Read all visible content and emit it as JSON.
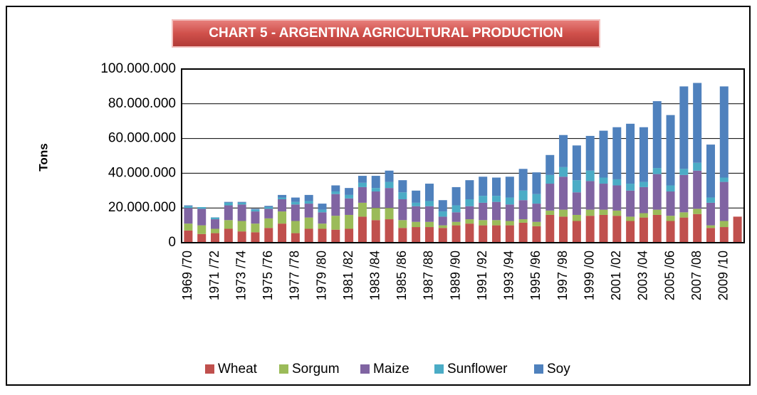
{
  "chart_data": {
    "type": "stacked_bar",
    "title": "CHART 5 - ARGENTINA AGRICULTURAL PRODUCTION",
    "y_label": "Tons",
    "categories": [
      "1969 /70",
      null,
      "1971 /72",
      null,
      "1973 /74",
      null,
      "1975 /76",
      null,
      "1977 /78",
      null,
      "1979 /80",
      null,
      "1981 /82",
      null,
      "1983 /84",
      null,
      "1985 /86",
      null,
      "1987 /88",
      null,
      "1989 /90",
      null,
      "1991 /92",
      null,
      "1993 /94",
      null,
      "1995 /96",
      null,
      "1997 /98",
      null,
      "1999 /00",
      null,
      "2001 /02",
      null,
      "2003 /04",
      null,
      "2005 /06",
      null,
      "2007 /08",
      null,
      "2009 /10",
      null
    ],
    "series": [
      {
        "name": "Wheat",
        "color": "#c0504d",
        "values": [
          7000000,
          5000000,
          5500000,
          8000000,
          6500000,
          6000000,
          8500000,
          11000000,
          5500000,
          8000000,
          8000000,
          7500000,
          8000000,
          15000000,
          13000000,
          13500000,
          8500000,
          9000000,
          9000000,
          8500000,
          10000000,
          11000000,
          10000000,
          10000000,
          10000000,
          11500000,
          9500000,
          16000000,
          15000000,
          12500000,
          15500000,
          16000000,
          15500000,
          12500000,
          14500000,
          16000000,
          12500000,
          14500000,
          16500000,
          8500000,
          9000000,
          15000000
        ]
      },
      {
        "name": "Sorgum",
        "color": "#9bbb59",
        "values": [
          4000000,
          5000000,
          2500000,
          5000000,
          6000000,
          5000000,
          5500000,
          7000000,
          7000000,
          6500000,
          3000000,
          8000000,
          8000000,
          8000000,
          7000000,
          6500000,
          4500000,
          3000000,
          3000000,
          1500000,
          2000000,
          2500000,
          3000000,
          3000000,
          2500000,
          2000000,
          2500000,
          2500000,
          4000000,
          3500000,
          3500000,
          3000000,
          3000000,
          2500000,
          2500000,
          3000000,
          3000000,
          3000000,
          3000000,
          1500000,
          3500000,
          null
        ]
      },
      {
        "name": "Maize",
        "color": "#8064a2",
        "values": [
          9000000,
          9500000,
          5500000,
          8500000,
          9500000,
          7000000,
          5500000,
          7000000,
          9500000,
          8000000,
          6500000,
          12500000,
          9500000,
          9000000,
          9500000,
          11500000,
          12000000,
          9000000,
          9000000,
          5000000,
          5500000,
          7500000,
          10000000,
          10500000,
          9500000,
          11000000,
          10500000,
          15500000,
          19000000,
          13000000,
          16500000,
          15000000,
          14500000,
          15000000,
          15000000,
          20500000,
          14000000,
          21500000,
          22000000,
          13000000,
          22500000,
          null
        ]
      },
      {
        "name": "Sunflower",
        "color": "#4bacc6",
        "values": [
          1000000,
          1000000,
          1000000,
          1500000,
          1000000,
          1000000,
          1000000,
          1000000,
          1500000,
          1500000,
          1500000,
          1500000,
          2000000,
          2500000,
          2000000,
          3500000,
          4000000,
          2000000,
          3000000,
          3000000,
          4000000,
          4000000,
          4000000,
          3500000,
          4000000,
          5500000,
          5500000,
          5000000,
          5500000,
          7000000,
          6000000,
          3500000,
          3500000,
          4000000,
          3000000,
          3500000,
          3500000,
          3500000,
          4500000,
          3000000,
          2500000,
          null
        ]
      },
      {
        "name": "Soy",
        "color": "#4f81bd",
        "values": [
          500000,
          null,
          100000,
          500000,
          500000,
          500000,
          700000,
          1500000,
          2500000,
          3500000,
          3500000,
          3500000,
          4000000,
          4000000,
          7000000,
          6500000,
          7000000,
          7000000,
          10000000,
          6500000,
          10500000,
          11000000,
          11000000,
          10500000,
          12000000,
          12500000,
          12500000,
          11500000,
          18500000,
          20000000,
          20000000,
          27000000,
          30000000,
          34500000,
          31500000,
          38500000,
          40500000,
          47500000,
          46000000,
          30500000,
          52500000,
          null
        ]
      }
    ],
    "ylim": [
      0,
      100000000
    ],
    "yticks": [
      0,
      {
        "value": 20000000,
        "label": "20.000.000"
      },
      {
        "value": 40000000,
        "label": "40.000.000"
      },
      {
        "value": 60000000,
        "label": "60.000.000"
      },
      {
        "value": 80000000,
        "label": "80.000.000"
      },
      {
        "value": 100000000,
        "label": "100.000.000"
      }
    ],
    "grid": true,
    "legend": "bottom"
  }
}
